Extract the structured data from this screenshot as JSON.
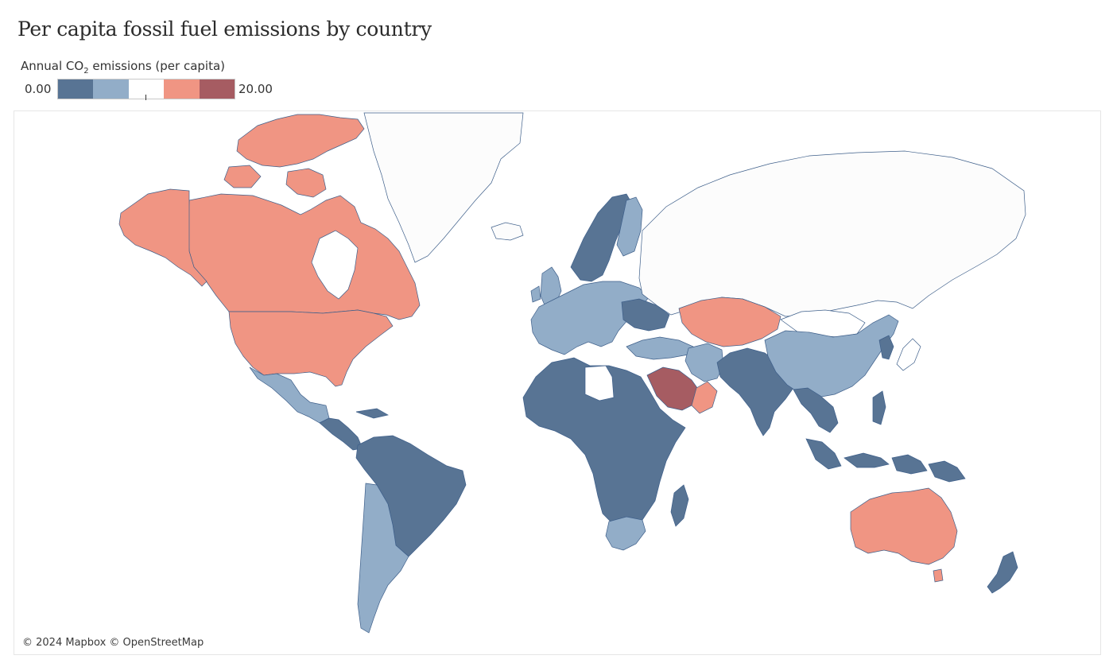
{
  "title": "Per capita fossil fuel emissions by country",
  "legend": {
    "title_prefix": "Annual CO",
    "title_sub": "2",
    "title_suffix": " emissions (per capita)",
    "min_label": "0.00",
    "max_label": "20.00",
    "steps": [
      "#587494",
      "#92adc8",
      "#ffffff",
      "#f09583",
      "#a65c62"
    ]
  },
  "attribution": "© 2024 Mapbox © OpenStreetMap",
  "colors": {
    "no_data": "#fcfcfc",
    "band_1": "#587494",
    "band_2": "#92adc8",
    "band_3": "#ffffff",
    "band_4": "#f09583",
    "band_5": "#a65c62",
    "outline": "#3e5f8a"
  },
  "regions": [
    {
      "name": "greenland",
      "fill": "#fcfcfc"
    },
    {
      "name": "canada",
      "fill": "#f09583"
    },
    {
      "name": "alaska",
      "fill": "#f09583"
    },
    {
      "name": "canadian-arctic-islands",
      "fill": "#f09583"
    },
    {
      "name": "hudson-bay",
      "fill": "#ffffff"
    },
    {
      "name": "united-states",
      "fill": "#f09583"
    },
    {
      "name": "mexico",
      "fill": "#92adc8"
    },
    {
      "name": "central-america",
      "fill": "#587494"
    },
    {
      "name": "south-america",
      "fill": "#587494"
    },
    {
      "name": "argentina-chile",
      "fill": "#92adc8"
    },
    {
      "name": "iceland",
      "fill": "#fcfcfc"
    },
    {
      "name": "scandinavia",
      "fill": "#587494"
    },
    {
      "name": "finland",
      "fill": "#92adc8"
    },
    {
      "name": "europe",
      "fill": "#92adc8"
    },
    {
      "name": "uk",
      "fill": "#92adc8"
    },
    {
      "name": "ukraine",
      "fill": "#587494"
    },
    {
      "name": "russia",
      "fill": "#fcfcfc"
    },
    {
      "name": "kazakhstan",
      "fill": "#f09583"
    },
    {
      "name": "turkey",
      "fill": "#92adc8"
    },
    {
      "name": "africa",
      "fill": "#587494"
    },
    {
      "name": "libya",
      "fill": "#ffffff"
    },
    {
      "name": "southern-africa",
      "fill": "#92adc8"
    },
    {
      "name": "madagascar",
      "fill": "#587494"
    },
    {
      "name": "saudi-arabia",
      "fill": "#a65c62"
    },
    {
      "name": "oman",
      "fill": "#f09583"
    },
    {
      "name": "iran",
      "fill": "#92adc8"
    },
    {
      "name": "south-asia",
      "fill": "#587494"
    },
    {
      "name": "china",
      "fill": "#92adc8"
    },
    {
      "name": "mongolia",
      "fill": "#ffffff"
    },
    {
      "name": "southeast-asia",
      "fill": "#587494"
    },
    {
      "name": "indonesia",
      "fill": "#587494"
    },
    {
      "name": "japan",
      "fill": "#ffffff"
    },
    {
      "name": "korea",
      "fill": "#587494"
    },
    {
      "name": "australia",
      "fill": "#f09583"
    },
    {
      "name": "tasmania",
      "fill": "#f09583"
    },
    {
      "name": "new-zealand",
      "fill": "#587494"
    }
  ]
}
